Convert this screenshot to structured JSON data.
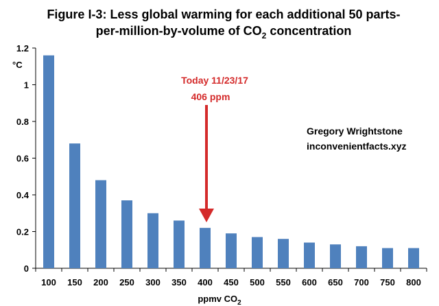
{
  "chart_data": {
    "type": "bar",
    "title_line1": "Figure I-3:  Less global warming for each additional 50 parts-",
    "title_line2_prefix": "per-million-by-volume of CO",
    "title_line2_sub": "2",
    "title_line2_suffix": " concentration",
    "ylabel": "°C",
    "xlabel_prefix": "ppmv CO",
    "xlabel_sub": "2",
    "categories": [
      "100",
      "150",
      "200",
      "250",
      "300",
      "350",
      "400",
      "450",
      "500",
      "550",
      "600",
      "650",
      "700",
      "750",
      "800"
    ],
    "values": [
      1.16,
      0.68,
      0.48,
      0.37,
      0.3,
      0.26,
      0.22,
      0.19,
      0.17,
      0.16,
      0.14,
      0.13,
      0.12,
      0.11,
      0.11
    ],
    "ylim": [
      0,
      1.2
    ],
    "yticks": [
      "0",
      "0.2",
      "0.4",
      "0.6",
      "0.8",
      "1",
      "1.2"
    ],
    "ytick_values": [
      0,
      0.2,
      0.4,
      0.6,
      0.8,
      1.0,
      1.2
    ],
    "grid": false,
    "bar_color": "#4f81bd",
    "annotation": {
      "line1": "Today 11/23/17",
      "line2": "406 ppm",
      "color": "#d42a2a",
      "points_to_category": "400"
    },
    "credit": {
      "line1": "Gregory Wrightstone",
      "line2": "inconvenientfacts.xyz"
    }
  }
}
